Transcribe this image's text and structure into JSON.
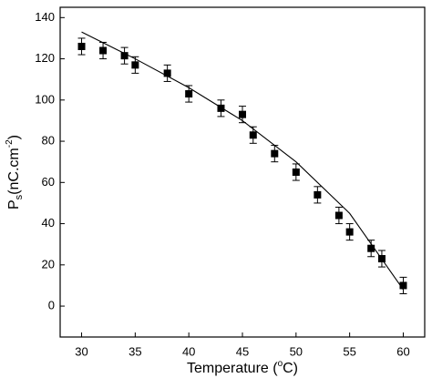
{
  "chart_data": {
    "type": "scatter",
    "x_label": {
      "main": "Temperature (",
      "sup": "o",
      "end": "C)"
    },
    "y_label": {
      "main": "P",
      "sub": "s",
      "rest": "(nC.cm",
      "sup": "-2",
      "end": ")"
    },
    "xlim": [
      28,
      62
    ],
    "ylim": [
      -15,
      145
    ],
    "xticks": [
      30,
      35,
      40,
      45,
      50,
      55,
      60
    ],
    "yticks": [
      0,
      20,
      40,
      60,
      80,
      100,
      120,
      140
    ],
    "series": [
      {
        "type": "scatter",
        "color": "#000000",
        "x": [
          30,
          32,
          34,
          35,
          38,
          40,
          43,
          45,
          46,
          48,
          50,
          52,
          54,
          55,
          57,
          58,
          60
        ],
        "values": [
          126,
          124,
          121.5,
          117,
          113,
          103,
          96,
          93,
          83,
          74,
          65,
          54,
          44,
          36,
          28,
          23,
          10
        ],
        "errors": [
          4,
          4,
          4,
          4,
          4,
          4,
          4,
          4,
          4,
          4,
          4,
          4,
          4,
          4,
          4,
          4,
          4
        ]
      },
      {
        "type": "line",
        "color": "#000000",
        "x": [
          30,
          35,
          40,
          45,
          50,
          55,
          60
        ],
        "values": [
          133,
          120,
          106,
          90,
          70,
          45,
          8
        ]
      }
    ]
  }
}
